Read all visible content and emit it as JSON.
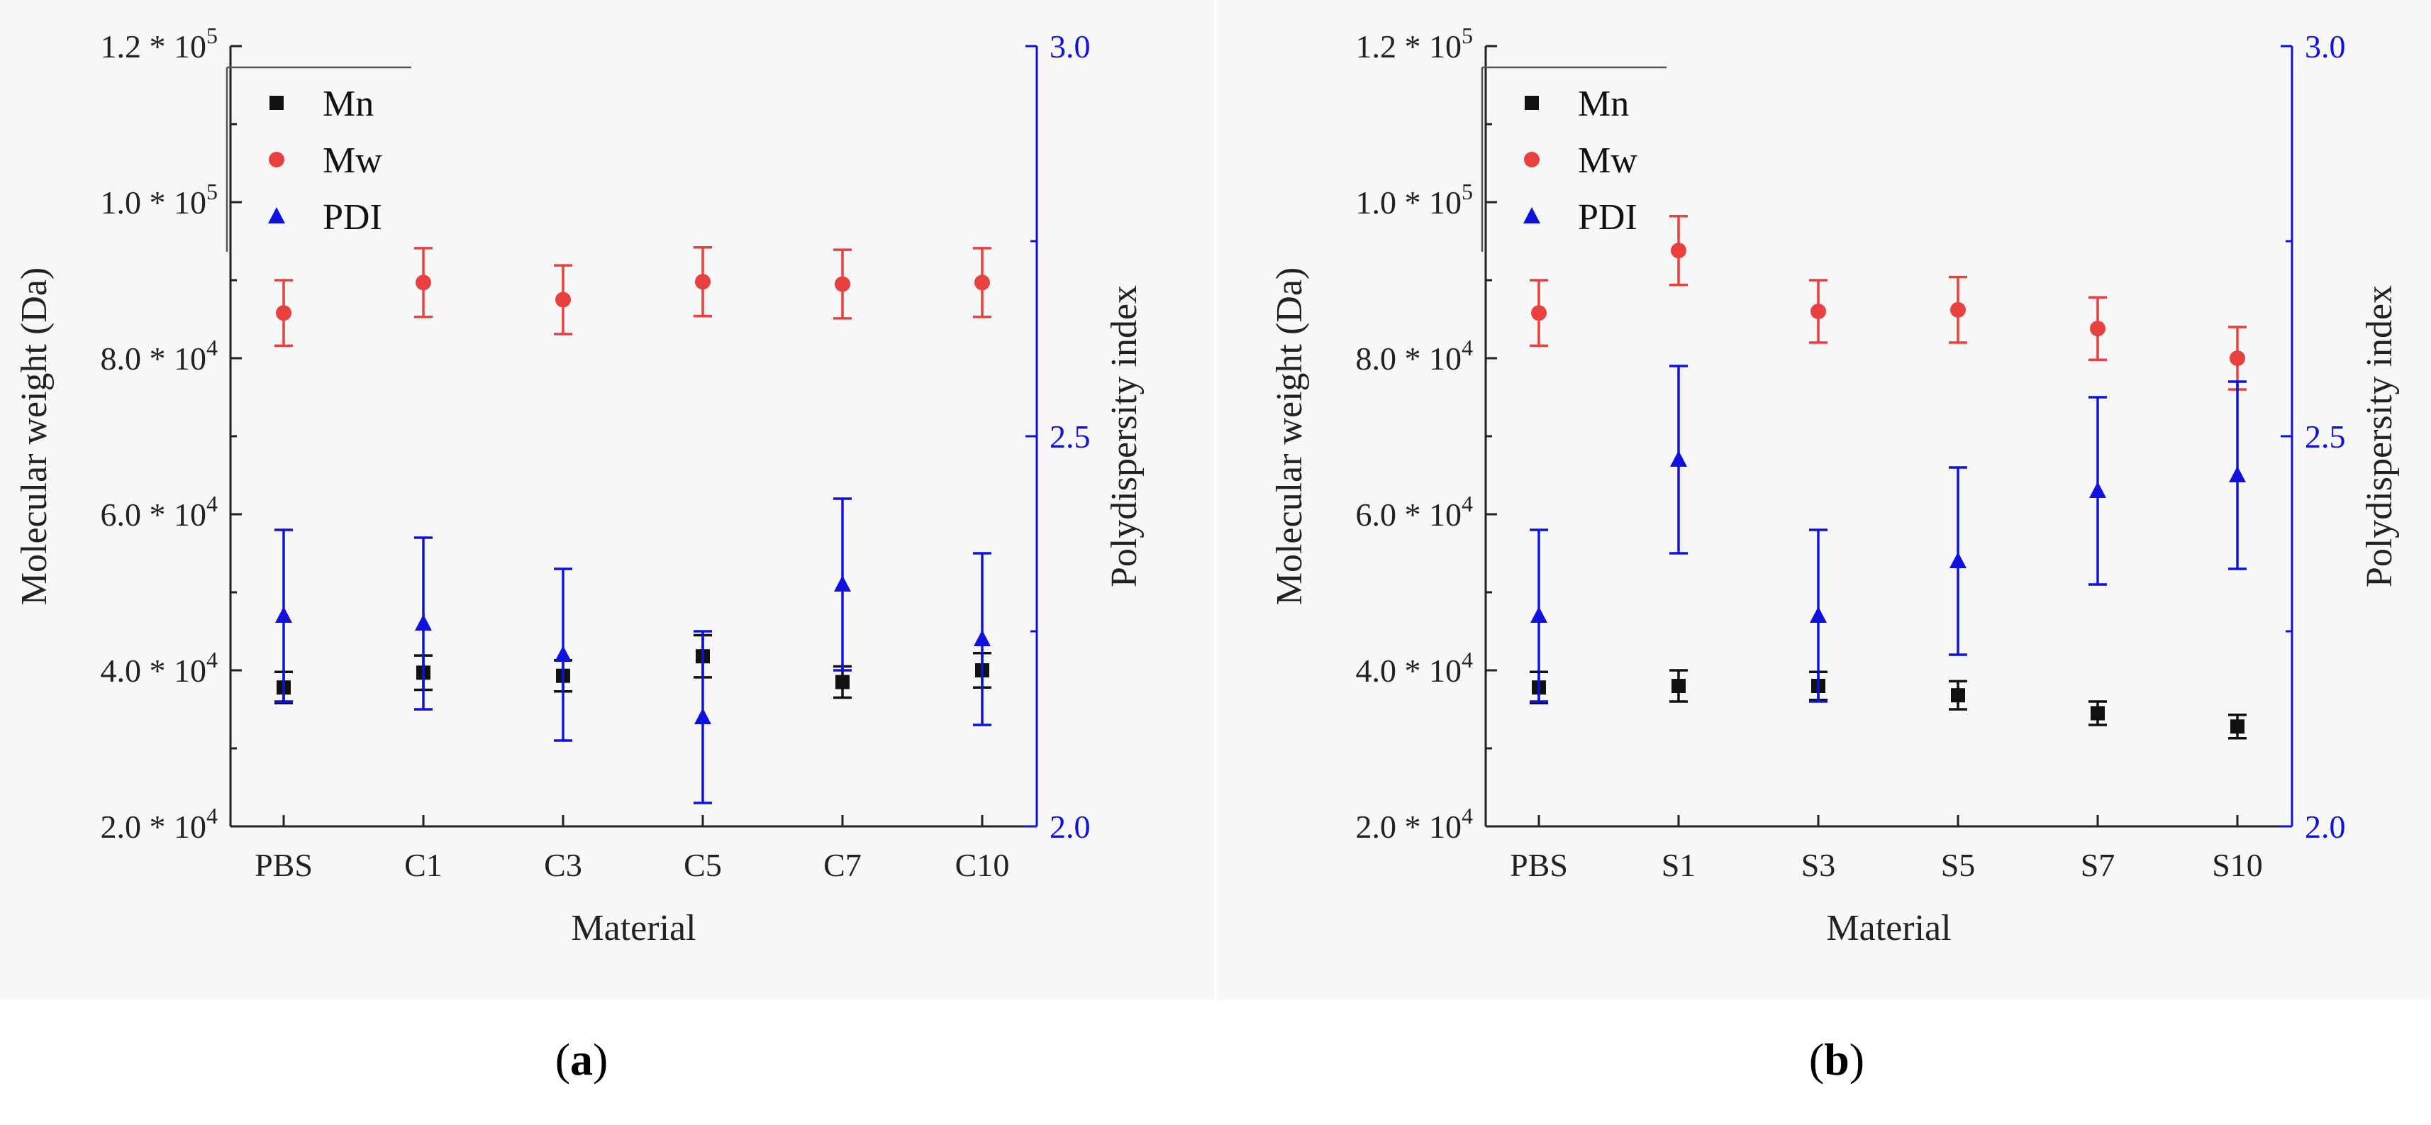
{
  "colors": {
    "Mn": "#111111",
    "Mw": "#e8403f",
    "PDI": "#1111dd",
    "axis_left": "#222222",
    "axis_right": "#1111dd"
  },
  "shared": {
    "ylabel_left": "Molecular weight (Da)",
    "ylabel_right": "Polydispersity index",
    "xlabel": "Material",
    "yleft_ticks": [
      {
        "value": 20000,
        "mant": "2.0",
        "exp": "4"
      },
      {
        "value": 40000,
        "mant": "4.0",
        "exp": "4"
      },
      {
        "value": 60000,
        "mant": "6.0",
        "exp": "4"
      },
      {
        "value": 80000,
        "mant": "8.0",
        "exp": "4"
      },
      {
        "value": 100000,
        "mant": "1.0",
        "exp": "5"
      },
      {
        "value": 120000,
        "mant": "1.2",
        "exp": "5"
      }
    ],
    "yright_ticks": [
      "2.0",
      "2.5",
      "3.0"
    ],
    "legend": [
      "Mn",
      "Mw",
      "PDI"
    ]
  },
  "chart_data": [
    {
      "type": "scatter",
      "panel_label": "a",
      "categories": [
        "PBS",
        "C1",
        "C3",
        "C5",
        "C7",
        "C10"
      ],
      "xlabel": "Material",
      "ylabel": "Molecular weight (Da)",
      "y2label": "Polydispersity index",
      "ylim": [
        20000,
        120000
      ],
      "y2lim": [
        2.0,
        3.0
      ],
      "series": [
        {
          "name": "Mn",
          "axis": "left",
          "marker": "square",
          "values": [
            37800,
            39700,
            39300,
            41800,
            38500,
            40000
          ],
          "errors": [
            2000,
            2200,
            2000,
            2700,
            2000,
            2200
          ]
        },
        {
          "name": "Mw",
          "axis": "left",
          "marker": "circle",
          "values": [
            85800,
            89700,
            87500,
            89800,
            89500,
            89700
          ],
          "errors": [
            4200,
            4400,
            4400,
            4400,
            4400,
            4400
          ]
        },
        {
          "name": "PDI",
          "axis": "right",
          "marker": "triangle",
          "values": [
            2.27,
            2.26,
            2.22,
            2.14,
            2.31,
            2.24
          ],
          "errors": [
            0.11,
            0.11,
            0.11,
            0.11,
            0.11,
            0.11
          ]
        }
      ]
    },
    {
      "type": "scatter",
      "panel_label": "b",
      "categories": [
        "PBS",
        "S1",
        "S3",
        "S5",
        "S7",
        "S10"
      ],
      "xlabel": "Material",
      "ylabel": "Molecular weight (Da)",
      "y2label": "Polydispersity index",
      "ylim": [
        20000,
        120000
      ],
      "y2lim": [
        2.0,
        3.0
      ],
      "series": [
        {
          "name": "Mn",
          "axis": "left",
          "marker": "square",
          "values": [
            37800,
            38000,
            38000,
            36800,
            34500,
            32800
          ],
          "errors": [
            2000,
            2000,
            1800,
            1800,
            1500,
            1500
          ]
        },
        {
          "name": "Mw",
          "axis": "left",
          "marker": "circle",
          "values": [
            85800,
            93800,
            86000,
            86200,
            83800,
            80000
          ],
          "errors": [
            4200,
            4400,
            4000,
            4200,
            4000,
            4000
          ]
        },
        {
          "name": "PDI",
          "axis": "right",
          "marker": "triangle",
          "values": [
            2.27,
            2.47,
            2.27,
            2.34,
            2.43,
            2.45
          ],
          "errors": [
            0.11,
            0.12,
            0.11,
            0.12,
            0.12,
            0.12
          ]
        }
      ]
    }
  ]
}
